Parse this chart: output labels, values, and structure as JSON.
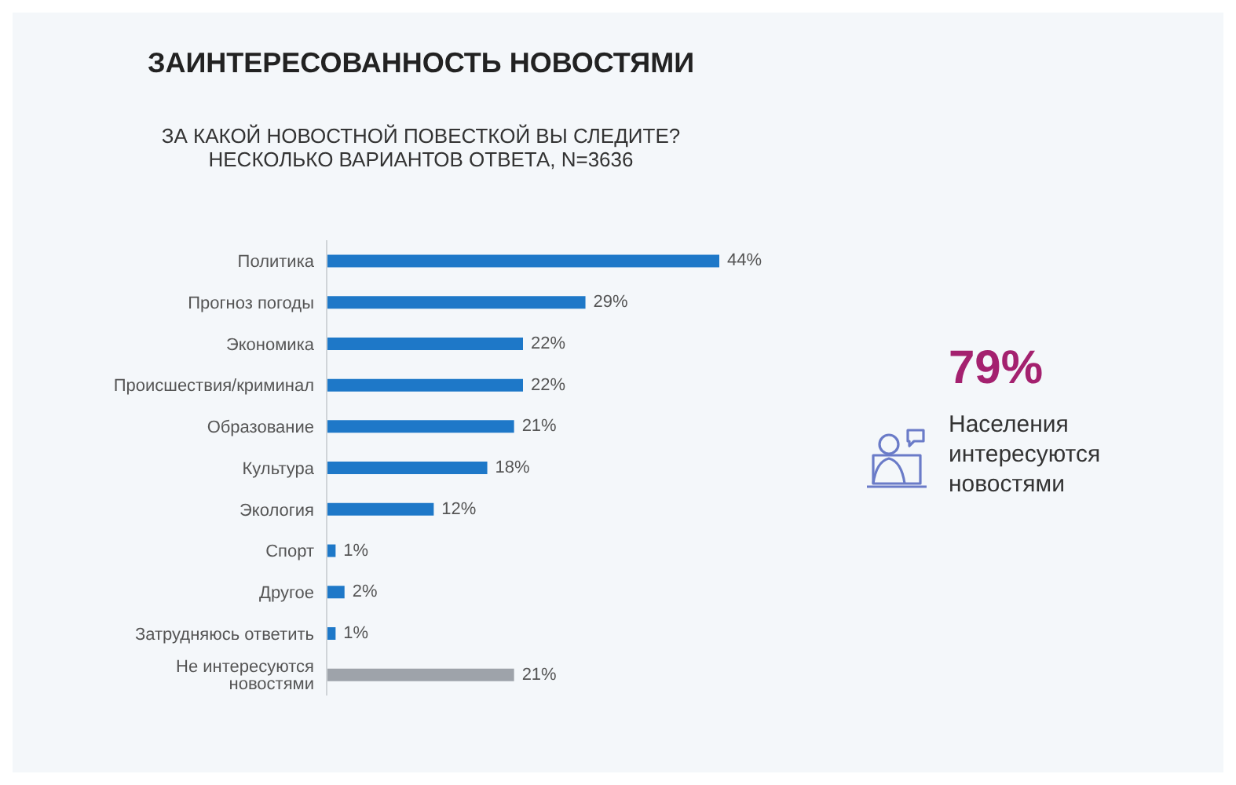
{
  "chart_data": {
    "type": "bar",
    "orientation": "horizontal",
    "title": "ЗАИНТЕРЕСОВАННОСТЬ НОВОСТЯМИ",
    "subtitle": "ЗА КАКОЙ НОВОСТНОЙ ПОВЕСТКОЙ ВЫ СЛЕДИТЕ?\nНЕСКОЛЬКО ВАРИАНТОВ ОТВЕТА,  N=3636",
    "categories": [
      "Политика",
      "Прогноз погоды",
      "Экономика",
      "Происшествия/криминал",
      "Образование",
      "Культура",
      "Экология",
      "Спорт",
      "Другое",
      "Затрудняюсь ответить",
      "Не интересуются новостями"
    ],
    "values": [
      44,
      29,
      22,
      22,
      21,
      18,
      12,
      1,
      2,
      1,
      21
    ],
    "value_labels": [
      "44%",
      "29%",
      "22%",
      "22%",
      "21%",
      "18%",
      "12%",
      "1%",
      "2%",
      "1%",
      "21%"
    ],
    "colors": [
      "#1e78c8",
      "#1e78c8",
      "#1e78c8",
      "#1e78c8",
      "#1e78c8",
      "#1e78c8",
      "#1e78c8",
      "#1e78c8",
      "#1e78c8",
      "#1e78c8",
      "#9ea3aa"
    ],
    "tick_labels": "y",
    "annotations": [
      "79%",
      "Населения интересуются новостями"
    ]
  }
}
